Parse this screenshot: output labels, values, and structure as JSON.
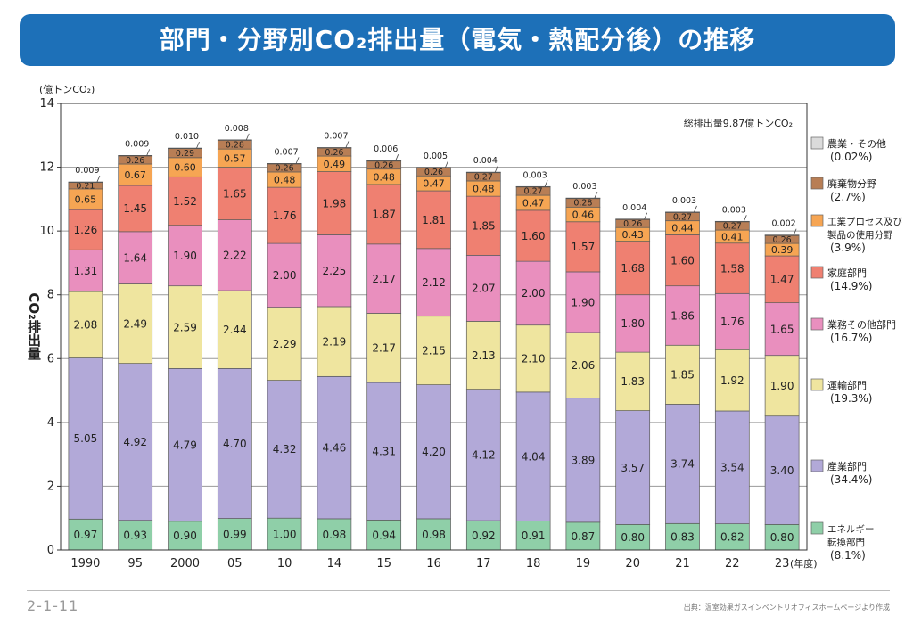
{
  "header": {
    "title": "部門・分野別CO₂排出量（電気・熱配分後）の推移"
  },
  "footer": {
    "page_number": "2-1-11",
    "source": "出典：温室効果ガスインベントリオフィスホームページより作成"
  },
  "colors": {
    "title_bar": "#1d70b8",
    "energy": "#8fcfa8",
    "industry": "#b2a9d8",
    "transport": "#efe59f",
    "commercial": "#e98fbe",
    "household": "#ef8071",
    "process": "#f6a553",
    "waste": "#b87e55",
    "agriculture": "#dbdbdb"
  },
  "chart_data": {
    "type": "bar",
    "stacked": true,
    "title": "",
    "unit_label": "(億トンCO₂)",
    "ylabel": "CO₂排出量",
    "xlabel": "(年度)",
    "ylim": [
      0,
      14
    ],
    "yticks": [
      "0",
      "2",
      "4",
      "6",
      "8",
      "10",
      "12",
      "14"
    ],
    "categories": [
      "1990",
      "95",
      "2000",
      "05",
      "10",
      "14",
      "15",
      "16",
      "17",
      "18",
      "19",
      "20",
      "21",
      "22",
      "23"
    ],
    "annotation": "総排出量9.87億トンCO₂",
    "legend_position": "right",
    "series": [
      {
        "name": "エネルギー転換部門",
        "name_lines": [
          "エネルギー",
          "転換部門"
        ],
        "share": "(8.1%)",
        "color_key": "energy",
        "values": [
          0.97,
          0.93,
          0.9,
          0.99,
          1.0,
          0.98,
          0.94,
          0.98,
          0.92,
          0.91,
          0.87,
          0.8,
          0.83,
          0.82,
          0.8
        ],
        "labels": [
          "0.97",
          "0.93",
          "0.90",
          "0.99",
          "1.00",
          "0.98",
          "0.94",
          "0.98",
          "0.92",
          "0.91",
          "0.87",
          "0.80",
          "0.83",
          "0.82",
          "0.80"
        ]
      },
      {
        "name": "産業部門",
        "name_lines": [
          "産業部門"
        ],
        "share": "(34.4%)",
        "color_key": "industry",
        "values": [
          5.05,
          4.92,
          4.79,
          4.7,
          4.32,
          4.46,
          4.31,
          4.2,
          4.12,
          4.04,
          3.89,
          3.57,
          3.74,
          3.54,
          3.4
        ],
        "labels": [
          "5.05",
          "4.92",
          "4.79",
          "4.70",
          "4.32",
          "4.46",
          "4.31",
          "4.20",
          "4.12",
          "4.04",
          "3.89",
          "3.57",
          "3.74",
          "3.54",
          "3.40"
        ]
      },
      {
        "name": "運輸部門",
        "name_lines": [
          "運輸部門"
        ],
        "share": "(19.3%)",
        "color_key": "transport",
        "values": [
          2.08,
          2.49,
          2.59,
          2.44,
          2.29,
          2.19,
          2.17,
          2.15,
          2.13,
          2.1,
          2.06,
          1.83,
          1.85,
          1.92,
          1.9
        ],
        "labels": [
          "2.08",
          "2.49",
          "2.59",
          "2.44",
          "2.29",
          "2.19",
          "2.17",
          "2.15",
          "2.13",
          "2.10",
          "2.06",
          "1.83",
          "1.85",
          "1.92",
          "1.90"
        ]
      },
      {
        "name": "業務その他部門",
        "name_lines": [
          "業務その他部門"
        ],
        "share": "(16.7%)",
        "color_key": "commercial",
        "values": [
          1.31,
          1.64,
          1.9,
          2.22,
          2.0,
          2.25,
          2.17,
          2.12,
          2.07,
          2.0,
          1.9,
          1.8,
          1.86,
          1.76,
          1.65
        ],
        "labels": [
          "1.31",
          "1.64",
          "1.90",
          "2.22",
          "2.00",
          "2.25",
          "2.17",
          "2.12",
          "2.07",
          "2.00",
          "1.90",
          "1.80",
          "1.86",
          "1.76",
          "1.65"
        ]
      },
      {
        "name": "家庭部門",
        "name_lines": [
          "家庭部門"
        ],
        "share": "(14.9%)",
        "color_key": "household",
        "values": [
          1.26,
          1.45,
          1.52,
          1.65,
          1.76,
          1.98,
          1.87,
          1.81,
          1.85,
          1.6,
          1.57,
          1.68,
          1.6,
          1.58,
          1.47
        ],
        "labels": [
          "1.26",
          "1.45",
          "1.52",
          "1.65",
          "1.76",
          "1.98",
          "1.87",
          "1.81",
          "1.85",
          "1.60",
          "1.57",
          "1.68",
          "1.60",
          "1.58",
          "1.47"
        ]
      },
      {
        "name": "工業プロセス及び製品の使用分野",
        "name_lines": [
          "工業プロセス及び",
          "製品の使用分野"
        ],
        "share": "(3.9%)",
        "color_key": "process",
        "values": [
          0.65,
          0.67,
          0.6,
          0.57,
          0.48,
          0.49,
          0.48,
          0.47,
          0.48,
          0.47,
          0.46,
          0.43,
          0.44,
          0.41,
          0.39
        ],
        "labels": [
          "0.65",
          "0.67",
          "0.60",
          "0.57",
          "0.48",
          "0.49",
          "0.48",
          "0.47",
          "0.48",
          "0.47",
          "0.46",
          "0.43",
          "0.44",
          "0.41",
          "0.39"
        ]
      },
      {
        "name": "廃棄物分野",
        "name_lines": [
          "廃棄物分野"
        ],
        "share": "(2.7%)",
        "color_key": "waste",
        "values": [
          0.21,
          0.26,
          0.29,
          0.28,
          0.26,
          0.26,
          0.26,
          0.26,
          0.27,
          0.27,
          0.28,
          0.26,
          0.27,
          0.27,
          0.26
        ],
        "labels": [
          "0.21",
          "0.26",
          "0.29",
          "0.28",
          "0.26",
          "0.26",
          "0.26",
          "0.26",
          "0.27",
          "0.27",
          "0.28",
          "0.26",
          "0.27",
          "0.27",
          "0.26"
        ]
      },
      {
        "name": "農業・その他",
        "name_lines": [
          "農業・その他"
        ],
        "share": "(0.02%)",
        "color_key": "agriculture",
        "values": [
          0.009,
          0.009,
          0.01,
          0.008,
          0.007,
          0.007,
          0.006,
          0.005,
          0.004,
          0.003,
          0.003,
          0.004,
          0.003,
          0.003,
          0.002
        ],
        "labels": [
          "0.009",
          "0.009",
          "0.010",
          "0.008",
          "0.007",
          "0.007",
          "0.006",
          "0.005",
          "0.004",
          "0.003",
          "0.003",
          "0.004",
          "0.003",
          "0.003",
          "0.002"
        ]
      }
    ]
  }
}
